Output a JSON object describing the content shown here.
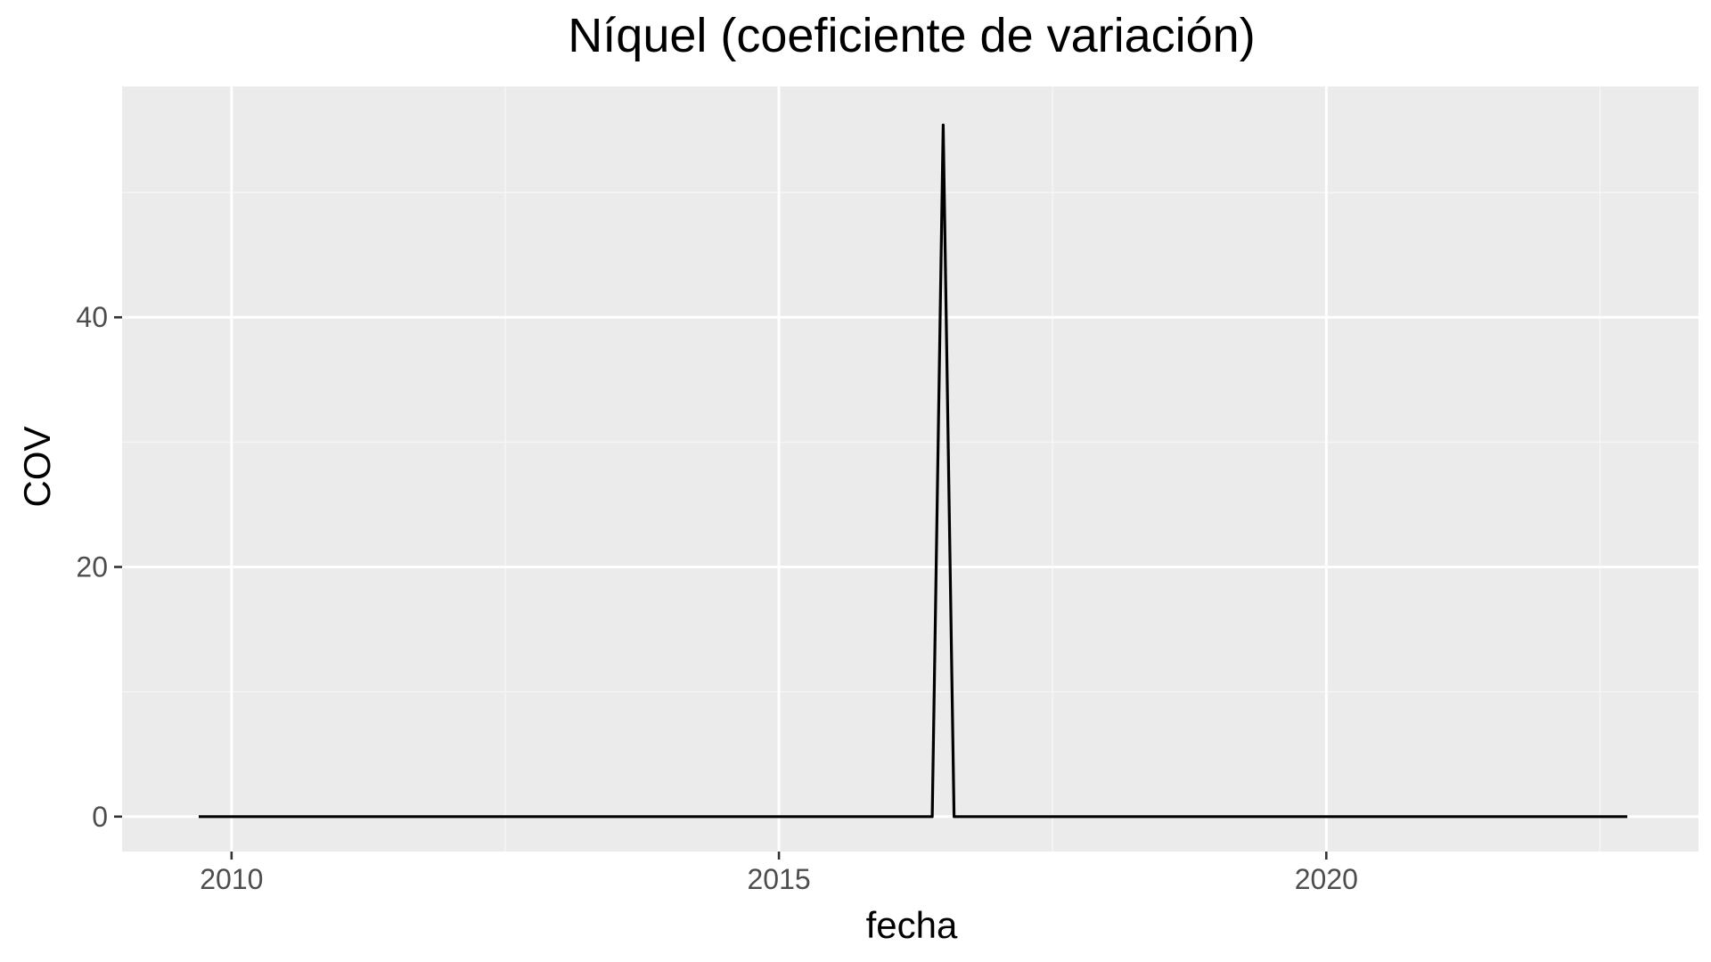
{
  "chart_data": {
    "type": "line",
    "title": "Níquel (coeficiente de variación)",
    "xlabel": "fecha",
    "ylabel": "COV",
    "x_ticks": [
      2010,
      2015,
      2020
    ],
    "x_tick_labels": [
      "2010",
      "2015",
      "2020"
    ],
    "y_ticks": [
      0,
      20,
      40
    ],
    "y_tick_labels": [
      "0",
      "20",
      "40"
    ],
    "xlim": [
      2009,
      2023.4
    ],
    "ylim": [
      -2.8,
      58.5
    ],
    "grid": true,
    "legend": "none",
    "colors": {
      "panel_background": "#ebebeb",
      "grid_major": "#ffffff",
      "grid_minor": "#f5f5f5",
      "line": "#000000",
      "tick_mark": "#333333",
      "tick_label": "#4d4d4d"
    },
    "series": [
      {
        "x": [
          2009.7,
          2016.4,
          2016.5,
          2016.6,
          2022.75
        ],
        "values": [
          0,
          0,
          55.4,
          0,
          0
        ]
      }
    ]
  }
}
